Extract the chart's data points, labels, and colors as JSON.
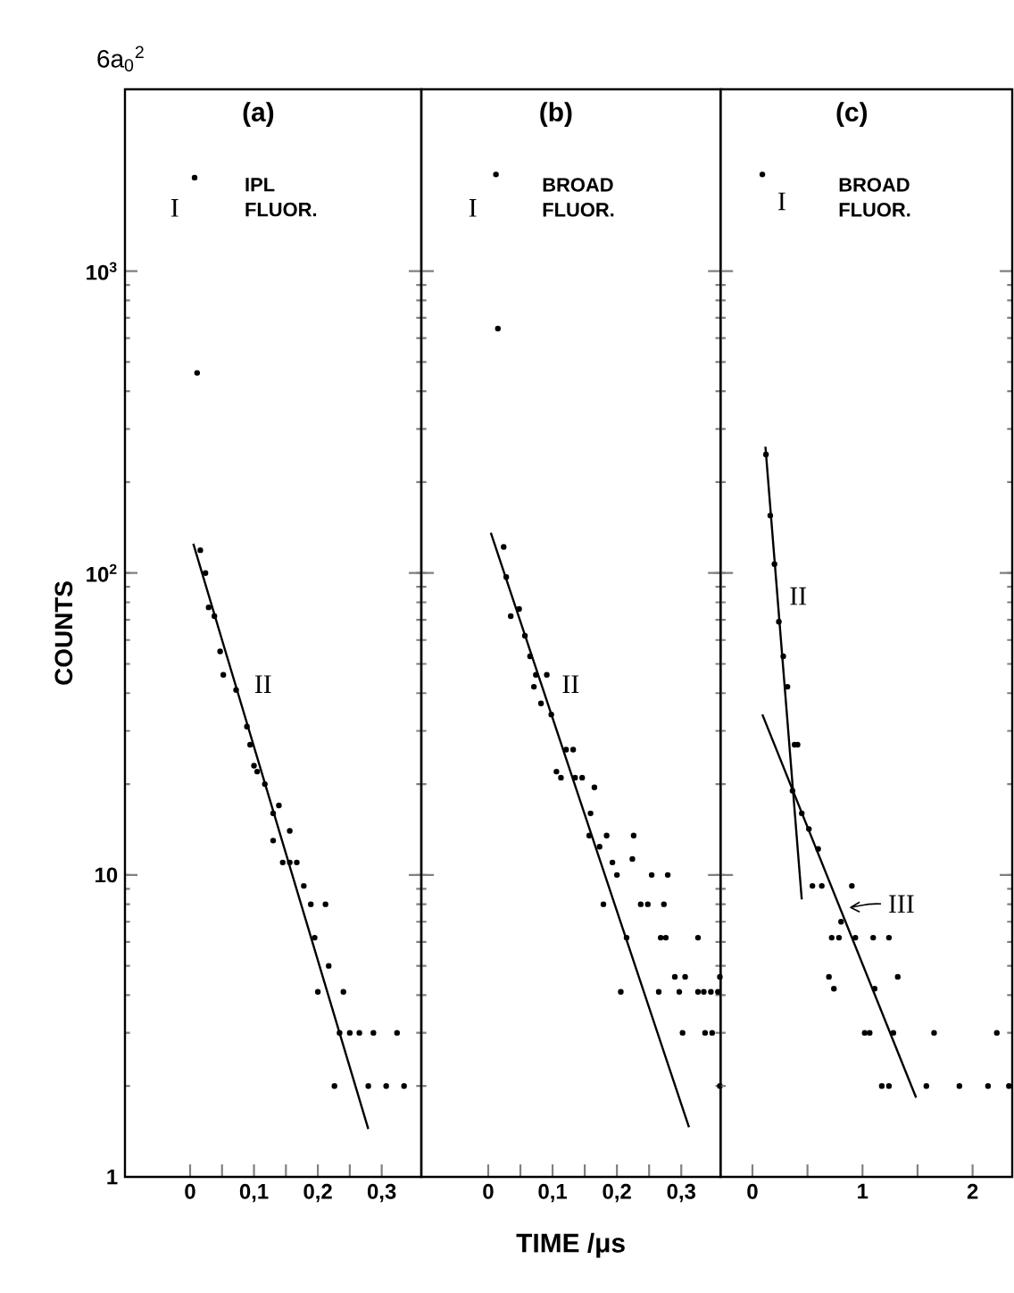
{
  "chart_data": [
    {
      "type": "scatter",
      "title": "(a)",
      "subtitle": "6a$_{0}$$^{2}$",
      "ylabel": "COUNTS",
      "log": true,
      "xlim": [
        -0.102,
        0.362
      ],
      "ylim": [
        1,
        4000
      ],
      "xticks": [
        0,
        {
          "value": 0.05,
          "label": null
        },
        {
          "value": 0.1,
          "label": "0,1"
        },
        {
          "value": 0.15,
          "label": null
        },
        {
          "value": 0.2,
          "label": "0,2"
        },
        {
          "value": 0.25,
          "label": null
        },
        {
          "value": 0.3,
          "label": "0,3"
        }
      ],
      "yticks": [
        1,
        10,
        {
          "value": 100,
          "label": "10$^{2}$"
        },
        {
          "value": 1000,
          "label": "10$^{3}$"
        }
      ],
      "annotations": [
        "IPL FLUOR.",
        "I",
        "II"
      ],
      "series": [
        {
          "color": "#000000",
          "x": [
            0.007,
            0.011
          ],
          "values": [
            2040,
            460
          ]
        },
        {
          "color": "#000000",
          "x": [
            0.016,
            0.024,
            0.029,
            0.038,
            0.047,
            0.052,
            0.072,
            0.089,
            0.094,
            0.1,
            0.105,
            0.117,
            0.13,
            0.139,
            0.13,
            0.156,
            0.145,
            0.156,
            0.167,
            0.178,
            0.189,
            0.212,
            0.195,
            0.217,
            0.2,
            0.24,
            0.234,
            0.25,
            0.265,
            0.287,
            0.324,
            0.226,
            0.279,
            0.307,
            0.335
          ],
          "values": [
            119,
            100,
            77,
            72,
            55,
            46,
            41,
            31,
            27,
            23,
            22,
            20,
            16,
            17,
            13,
            14,
            11,
            11,
            11,
            9.2,
            8,
            8,
            6.2,
            5,
            4.1,
            4.1,
            3,
            3,
            3,
            3,
            3,
            2,
            2,
            2,
            2
          ]
        },
        {
          "type": "line",
          "color": "#000000",
          "x": [
            0.005,
            0.279
          ],
          "values": [
            125,
            1.44
          ]
        }
      ]
    },
    {
      "type": "scatter",
      "title": "(b)",
      "xlabel": "TIME /μs",
      "log": true,
      "tick_labels": "x",
      "xlim": [
        -0.104,
        0.361
      ],
      "ylim": [
        1,
        4000
      ],
      "xticks": [
        0,
        {
          "value": 0.05,
          "label": null
        },
        {
          "value": 0.1,
          "label": "0,1"
        },
        {
          "value": 0.15,
          "label": null
        },
        {
          "value": 0.2,
          "label": "0,2"
        },
        {
          "value": 0.25,
          "label": null
        },
        {
          "value": 0.3,
          "label": "0,3"
        }
      ],
      "yticks": [
        1,
        10,
        100,
        1000
      ],
      "annotations": [
        "BROAD FLUOR.",
        "I",
        "II"
      ],
      "series": [
        {
          "color": "#000000",
          "x": [
            0.012,
            0.015
          ],
          "values": [
            2090,
            645
          ]
        },
        {
          "color": "#000000",
          "x": [
            0.024,
            0.028,
            0.035,
            0.048,
            0.057,
            0.065,
            0.071,
            0.074,
            0.091,
            0.082,
            0.098,
            0.106,
            0.113,
            0.121,
            0.132,
            0.135,
            0.146,
            0.165,
            0.159,
            0.157,
            0.184,
            0.173,
            0.193,
            0.2,
            0.226,
            0.224,
            0.254,
            0.279,
            0.179,
            0.237,
            0.248,
            0.273,
            0.215,
            0.268,
            0.276,
            0.326,
            0.29,
            0.306,
            0.36,
            0.206,
            0.265,
            0.297,
            0.326,
            0.335,
            0.346,
            0.357,
            0.302,
            0.337,
            0.348,
            0.36
          ],
          "values": [
            122,
            97,
            72,
            76,
            62,
            53,
            42,
            46,
            46,
            37,
            34,
            22,
            21,
            26,
            26,
            21,
            21,
            19.5,
            16,
            13.5,
            13.5,
            12.4,
            11,
            10,
            13.5,
            11.3,
            10,
            10,
            8,
            8,
            8,
            8,
            6.2,
            6.2,
            6.2,
            6.2,
            4.6,
            4.6,
            4.6,
            4.1,
            4.1,
            4.1,
            4.1,
            4.1,
            4.1,
            4.1,
            3,
            3,
            3,
            2
          ]
        },
        {
          "type": "line",
          "color": "#000000",
          "x": [
            0.004,
            0.312
          ],
          "values": [
            136,
            1.46
          ]
        }
      ]
    },
    {
      "type": "scatter",
      "title": "(c)",
      "log": true,
      "tick_labels": "x",
      "xlim": [
        -0.29,
        2.36
      ],
      "ylim": [
        1,
        4000
      ],
      "xticks": [
        0,
        {
          "value": 0.5,
          "label": null
        },
        1,
        {
          "value": 1.5,
          "label": null
        },
        2
      ],
      "yticks": [
        1,
        10,
        100,
        1000
      ],
      "annotations": [
        "BROAD FLUOR.",
        "I",
        "II",
        "III"
      ],
      "series": [
        {
          "color": "#000000",
          "x": [
            0.09
          ],
          "values": [
            2090
          ]
        },
        {
          "color": "#000000",
          "x": [
            0.123,
            0.162,
            0.2,
            0.24,
            0.28,
            0.318,
            0.383,
            0.41
          ],
          "values": [
            247,
            155,
            107,
            69,
            53,
            42,
            27,
            27
          ]
        },
        {
          "type": "line",
          "color": "#000000",
          "x": [
            0.118,
            0.448
          ],
          "values": [
            262,
            8.3
          ]
        },
        {
          "color": "#000000",
          "x": [
            0.364,
            0.448,
            0.513,
            0.597,
            0.545,
            0.63,
            0.903,
            0.805,
            0.72,
            0.786,
            0.935,
            1.097,
            1.24,
            0.695,
            1.32,
            0.74,
            1.11,
            1.02,
            1.065,
            1.28,
            1.65,
            2.22,
            1.175,
            1.24,
            1.58,
            1.88,
            2.14,
            2.33
          ],
          "values": [
            19,
            16,
            14.2,
            12.2,
            9.2,
            9.2,
            9.2,
            7,
            6.2,
            6.2,
            6.2,
            6.2,
            6.2,
            4.6,
            4.6,
            4.2,
            4.2,
            3,
            3,
            3,
            3,
            3,
            2,
            2,
            2,
            2,
            2,
            2
          ]
        },
        {
          "type": "line",
          "color": "#000000",
          "x": [
            0.09,
            1.487
          ],
          "values": [
            34,
            1.83
          ]
        }
      ]
    }
  ]
}
